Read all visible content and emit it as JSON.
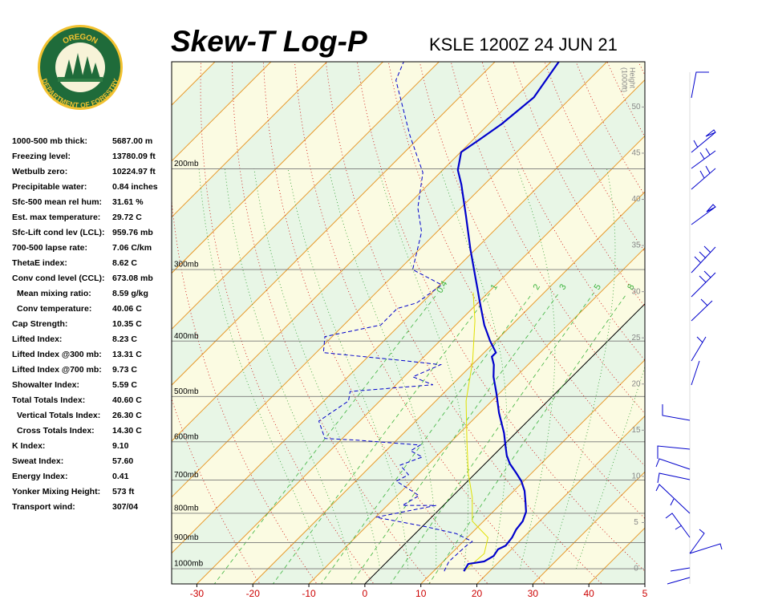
{
  "logo": {
    "top": "OREGON",
    "bottom": "DEPARTMENT OF FORESTRY"
  },
  "stats": [
    {
      "label": "1000-500 mb thick:",
      "value": "5687.00 m"
    },
    {
      "label": "Freezing level:",
      "value": "13780.09 ft"
    },
    {
      "label": "Wetbulb zero:",
      "value": "10224.97 ft"
    },
    {
      "label": "Precipitable water:",
      "value": "0.84 inches"
    },
    {
      "label": "Sfc-500 mean rel hum:",
      "value": "31.61 %"
    },
    {
      "label": "Est. max temperature:",
      "value": "29.72 C"
    },
    {
      "label": "Sfc-Lift cond lev (LCL):",
      "value": "959.76 mb"
    },
    {
      "label": "700-500 lapse rate:",
      "value": "7.06 C/km"
    },
    {
      "label": "ThetaE index:",
      "value": "8.62 C"
    },
    {
      "label": "Conv cond level (CCL):",
      "value": "673.08 mb",
      "children": [
        {
          "label": "Mean mixing ratio:",
          "value": "8.59 g/kg"
        },
        {
          "label": "Conv temperature:",
          "value": "40.06 C"
        }
      ]
    },
    {
      "label": "Cap Strength:",
      "value": "10.35 C"
    },
    {
      "label": "Lifted Index:",
      "value": "8.23 C"
    },
    {
      "label": "Lifted Index @300 mb:",
      "value": "13.31 C"
    },
    {
      "label": "Lifted Index @700 mb:",
      "value": "9.73 C"
    },
    {
      "label": "Showalter Index:",
      "value": "5.59 C"
    },
    {
      "label": "Total Totals Index:",
      "value": "40.60 C",
      "children": [
        {
          "label": "Vertical Totals Index:",
          "value": "26.30 C"
        },
        {
          "label": "Cross Totals Index:",
          "value": "14.30 C"
        }
      ]
    },
    {
      "label": "K Index:",
      "value": "9.10"
    },
    {
      "label": "Sweat Index:",
      "value": "57.60"
    },
    {
      "label": "Energy Index:",
      "value": "0.41"
    },
    {
      "label": "Yonker Mixing Height:",
      "value": "573 ft"
    },
    {
      "label": "Transport wind:",
      "value": "307/04"
    }
  ],
  "chart_data": {
    "type": "skew-t",
    "title": "Skew-T Log-P",
    "subtitle": "KSLE 1200Z 24 JUN 21",
    "xlim": [
      -34.5,
      50
    ],
    "xticks": [
      -30,
      -20,
      -10,
      0,
      10,
      20,
      30,
      40,
      {
        "value": 50,
        "label": "5"
      }
    ],
    "ylim": [
      1063,
      130
    ],
    "log_y": true,
    "yticks": [
      {
        "value": 200,
        "label": "200mb"
      },
      {
        "value": 300,
        "label": "300mb"
      },
      {
        "value": 400,
        "label": "400mb"
      },
      {
        "value": 500,
        "label": "500mb"
      },
      {
        "value": 600,
        "label": "600mb"
      },
      {
        "value": 700,
        "label": "700mb"
      },
      {
        "value": 800,
        "label": "800mb"
      },
      {
        "value": 900,
        "label": "900mb"
      },
      {
        "value": 1000,
        "label": "1000mb"
      }
    ],
    "height_label": [
      "Height",
      "(1000ft)"
    ],
    "height_lim": [
      -1.65,
      54.9
    ],
    "height_ticks": [
      0,
      5,
      10,
      15,
      20,
      25,
      30,
      35,
      40,
      45,
      50
    ],
    "mixing_ratio_lines": [
      0.4,
      1,
      2,
      3,
      5,
      8
    ],
    "series": [
      {
        "name": "Temperature",
        "color": "#0000cc",
        "style": "solid",
        "pressure": [
          1010,
          981,
          971,
          950,
          925,
          911,
          882,
          854,
          826,
          795,
          762,
          731,
          703,
          681,
          655,
          634,
          608,
          579,
          534,
          493,
          462,
          440,
          426,
          419,
          400,
          375,
          340,
          324,
          309,
          276,
          242,
          213,
          201,
          187,
          178,
          167,
          150,
          130
        ],
        "values": [
          15.4,
          14.9,
          17.3,
          18.0,
          17.6,
          18.3,
          18.0,
          17.3,
          17.0,
          15.9,
          13.9,
          11.9,
          9.6,
          7.3,
          4.4,
          2.4,
          0.3,
          -2.1,
          -6.6,
          -10.6,
          -14.0,
          -16.1,
          -17.9,
          -17.9,
          -21.0,
          -24.9,
          -30.1,
          -32.6,
          -35.1,
          -41.0,
          -47.6,
          -54.1,
          -57.3,
          -59.9,
          -58.9,
          -57.7,
          -56.7,
          -58.6
        ]
      },
      {
        "name": "Dewpoint",
        "color": "#0000cc",
        "style": "dashed",
        "pressure": [
          1010,
          971,
          911,
          896,
          868,
          843,
          813,
          775,
          775,
          745,
          703,
          685,
          659,
          638,
          622,
          608,
          596,
          592,
          552,
          509,
          490,
          477,
          462,
          440,
          433,
          419,
          393,
          375,
          351,
          343,
          319,
          300,
          258,
          234,
          203,
          175,
          140,
          130
        ],
        "values": [
          11.9,
          11.0,
          11.3,
          11.6,
          7.3,
          0.3,
          -9.9,
          -1.3,
          -7.3,
          -6.1,
          -12.7,
          -11.7,
          -14.9,
          -12.4,
          -15.6,
          -14.9,
          -27.1,
          -33.1,
          -37.3,
          -35.6,
          -37.0,
          -23.4,
          -28.4,
          -25.6,
          -32.7,
          -48.7,
          -51.3,
          -43.4,
          -43.4,
          -40.9,
          -39.7,
          -47.6,
          -52.7,
          -57.7,
          -63.1,
          -72.0,
          -84.4,
          -86.3
        ]
      },
      {
        "name": "Wetbulb",
        "color": "#e0e000",
        "style": "solid",
        "pressure": [
          1010,
          941,
          882,
          826,
          750,
          681,
          598,
          509,
          433,
          369,
          329
        ],
        "values": [
          15.4,
          15.9,
          13.7,
          8.0,
          3.7,
          -1.3,
          -7.3,
          -14.6,
          -20.6,
          -27.3,
          -32.7
        ]
      }
    ]
  }
}
